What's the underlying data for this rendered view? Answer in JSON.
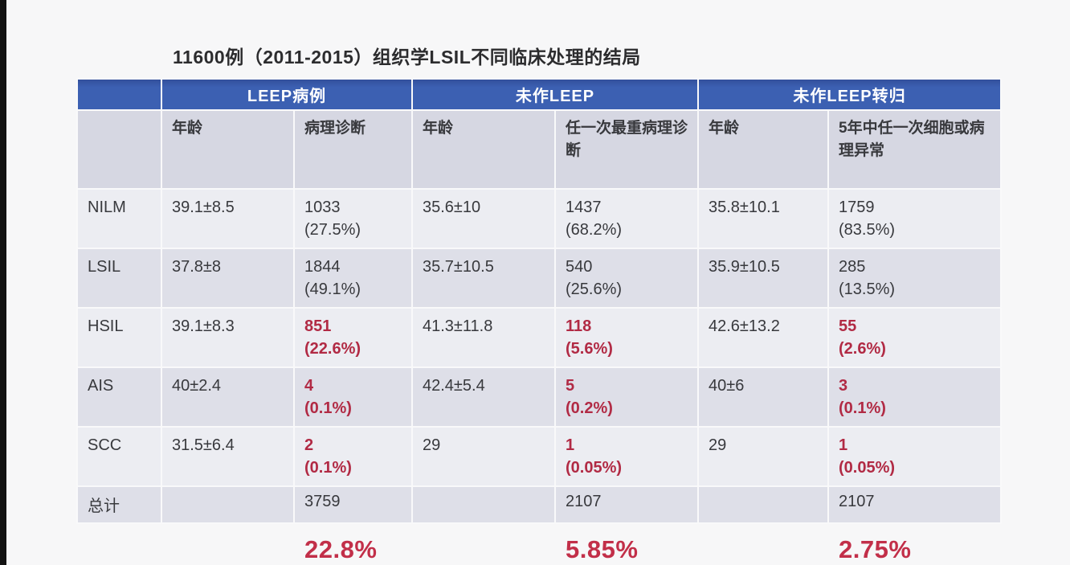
{
  "title": "11600例（2011-2015）组织学LSIL不同临床处理的结局",
  "colors": {
    "header_blue": "#3c60b2",
    "subheader_bg": "#d6d7e2",
    "row_light": "#ecedf2",
    "row_dark": "#dedfe8",
    "accent_red": "#b12a44",
    "footer_red": "#c22f49",
    "text": "#38393d"
  },
  "table": {
    "group_headers": [
      {
        "label": "",
        "span": 1
      },
      {
        "label": "LEEP病例",
        "span": 2
      },
      {
        "label": "未作LEEP",
        "span": 2
      },
      {
        "label": "未作LEEP转归",
        "span": 2
      }
    ],
    "sub_headers": [
      "",
      "年龄",
      "病理诊断",
      "年龄",
      "任一次最重病理诊断",
      "年龄",
      "5年中任一次细胞或病理异常"
    ],
    "rows": [
      {
        "label": "NILM",
        "cells": [
          {
            "lines": [
              "39.1±8.5"
            ]
          },
          {
            "lines": [
              "1033",
              "(27.5%)"
            ]
          },
          {
            "lines": [
              "35.6±10"
            ]
          },
          {
            "lines": [
              "1437",
              "(68.2%)"
            ]
          },
          {
            "lines": [
              "35.8±10.1"
            ]
          },
          {
            "lines": [
              "1759",
              "(83.5%)"
            ]
          }
        ]
      },
      {
        "label": "LSIL",
        "cells": [
          {
            "lines": [
              "37.8±8"
            ]
          },
          {
            "lines": [
              "1844",
              "(49.1%)"
            ]
          },
          {
            "lines": [
              "35.7±10.5"
            ]
          },
          {
            "lines": [
              "540",
              "(25.6%)"
            ]
          },
          {
            "lines": [
              "35.9±10.5"
            ]
          },
          {
            "lines": [
              "285",
              "(13.5%)"
            ]
          }
        ]
      },
      {
        "label": "HSIL",
        "cells": [
          {
            "lines": [
              "39.1±8.3"
            ]
          },
          {
            "lines": [
              "851",
              "(22.6%)"
            ],
            "red": true
          },
          {
            "lines": [
              "41.3±11.8"
            ]
          },
          {
            "lines": [
              "118",
              "(5.6%)"
            ],
            "red": true
          },
          {
            "lines": [
              "42.6±13.2"
            ]
          },
          {
            "lines": [
              "55",
              "(2.6%)"
            ],
            "red": true
          }
        ]
      },
      {
        "label": "AIS",
        "cells": [
          {
            "lines": [
              "40±2.4"
            ]
          },
          {
            "lines": [
              "4",
              "(0.1%)"
            ],
            "red": true
          },
          {
            "lines": [
              "42.4±5.4"
            ]
          },
          {
            "lines": [
              "5",
              "(0.2%)"
            ],
            "red": true
          },
          {
            "lines": [
              "40±6"
            ]
          },
          {
            "lines": [
              "3",
              "(0.1%)"
            ],
            "red": true
          }
        ]
      },
      {
        "label": "SCC",
        "cells": [
          {
            "lines": [
              "31.5±6.4"
            ]
          },
          {
            "lines": [
              "2",
              "(0.1%)"
            ],
            "red": true
          },
          {
            "lines": [
              "29"
            ]
          },
          {
            "lines": [
              "1",
              "(0.05%)"
            ],
            "red": true
          },
          {
            "lines": [
              "29"
            ]
          },
          {
            "lines": [
              "1",
              "(0.05%)"
            ],
            "red": true
          }
        ]
      },
      {
        "label": "总计",
        "total": true,
        "cells": [
          {
            "lines": []
          },
          {
            "lines": [
              "3759"
            ]
          },
          {
            "lines": []
          },
          {
            "lines": [
              "2107"
            ]
          },
          {
            "lines": []
          },
          {
            "lines": [
              "2107"
            ]
          }
        ]
      }
    ],
    "footer_rates": [
      {
        "col": 2,
        "text": "22.8%"
      },
      {
        "col": 4,
        "text": "5.85%"
      },
      {
        "col": 6,
        "text": "2.75%"
      }
    ]
  }
}
